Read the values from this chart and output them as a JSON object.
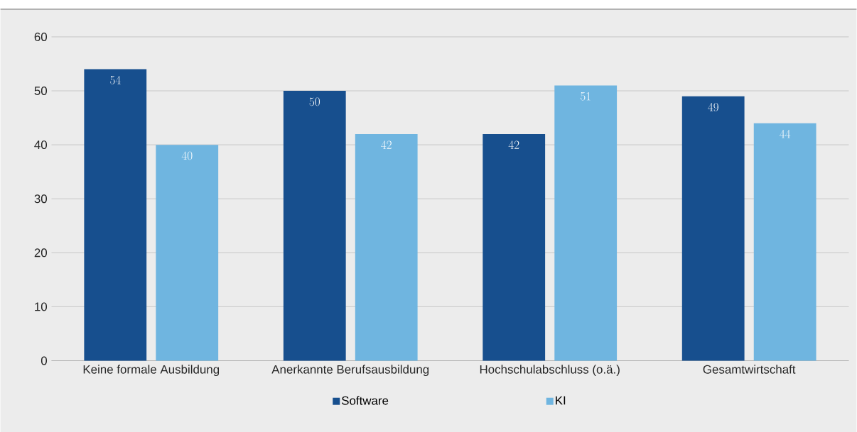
{
  "chart_data": {
    "type": "bar",
    "categories": [
      "Keine formale Ausbildung",
      "Anerkannte Berufsausbildung",
      "Hochschulabschluss (o.ä.)",
      "Gesamtwirtschaft"
    ],
    "series": [
      {
        "name": "Software",
        "color": "#174f8e",
        "values": [
          54,
          50,
          42,
          49
        ]
      },
      {
        "name": "KI",
        "color": "#6fb5e0",
        "values": [
          40,
          42,
          51,
          44
        ]
      }
    ],
    "ylim": [
      0,
      60
    ],
    "yticks": [
      0,
      10,
      20,
      30,
      40,
      50,
      60
    ],
    "grid": "y",
    "legend": "bottom",
    "data_labels": true
  }
}
